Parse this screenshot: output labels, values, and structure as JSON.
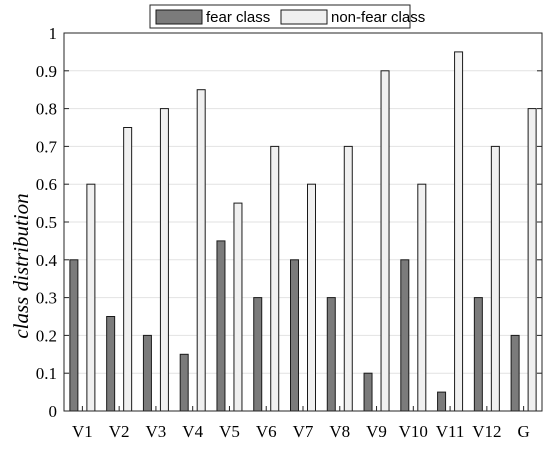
{
  "chart_data": {
    "type": "bar",
    "categories": [
      "V1",
      "V2",
      "V3",
      "V4",
      "V5",
      "V6",
      "V7",
      "V8",
      "V9",
      "V10",
      "V11",
      "V12",
      "G"
    ],
    "series": [
      {
        "name": "fear class",
        "color": "#7b7b7b",
        "values": [
          0.4,
          0.25,
          0.2,
          0.15,
          0.45,
          0.3,
          0.4,
          0.3,
          0.1,
          0.4,
          0.05,
          0.3,
          0.2
        ]
      },
      {
        "name": "non-fear class",
        "color": "#f0f0f0",
        "values": [
          0.6,
          0.75,
          0.8,
          0.85,
          0.55,
          0.7,
          0.6,
          0.7,
          0.9,
          0.6,
          0.95,
          0.7,
          0.8
        ]
      }
    ],
    "title": "",
    "xlabel": "",
    "ylabel": "class distribution",
    "ylim": [
      0,
      1
    ],
    "yticks": [
      "0",
      "0.1",
      "0.2",
      "0.3",
      "0.4",
      "0.5",
      "0.6",
      "0.7",
      "0.8",
      "0.9",
      "1"
    ],
    "grid": true,
    "legend_position": "top-center"
  }
}
